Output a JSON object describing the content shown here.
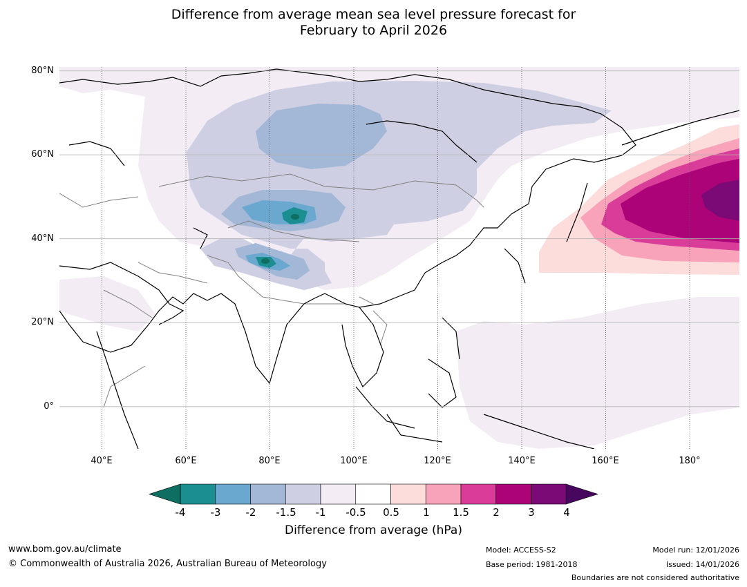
{
  "title": {
    "line1": "Difference from average mean sea level pressure forecast for",
    "line2": "February to April 2026"
  },
  "map": {
    "latitudes": [
      "80°N",
      "60°N",
      "40°N",
      "20°N",
      "0°"
    ],
    "longitudes": [
      "40°E",
      "60°E",
      "80°E",
      "100°E",
      "120°E",
      "140°E",
      "160°E",
      "180°"
    ],
    "lon_range": [
      30,
      192
    ],
    "lat_range": [
      -10,
      81
    ]
  },
  "colorbar": {
    "ticks": [
      "-4",
      "-3",
      "-2",
      "-1.5",
      "-1",
      "-0.5",
      "0.5",
      "1",
      "1.5",
      "2",
      "3",
      "4"
    ],
    "colors": [
      "#1b8e92",
      "#6aa8cf",
      "#a3b7d6",
      "#cfcfe3",
      "#f3ecf5",
      "#ffffff",
      "#fddcdc",
      "#f8a3b9",
      "#da3c99",
      "#ac0378",
      "#7b0a76"
    ],
    "under_color": "#0d6e61",
    "over_color": "#48075f",
    "label": "Difference from average (hPa)"
  },
  "footer": {
    "website": "www.bom.gov.au/climate",
    "copyright": "© Commonwealth of Australia 2026, Australian Bureau of Meteorology",
    "model": "Model: ACCESS-S2",
    "base_period": "Base period: 1981-2018",
    "model_run": "Model run: 12/01/2026",
    "issued": "Issued: 14/01/2026",
    "disclaimer": "Boundaries are not considered authoritative"
  }
}
